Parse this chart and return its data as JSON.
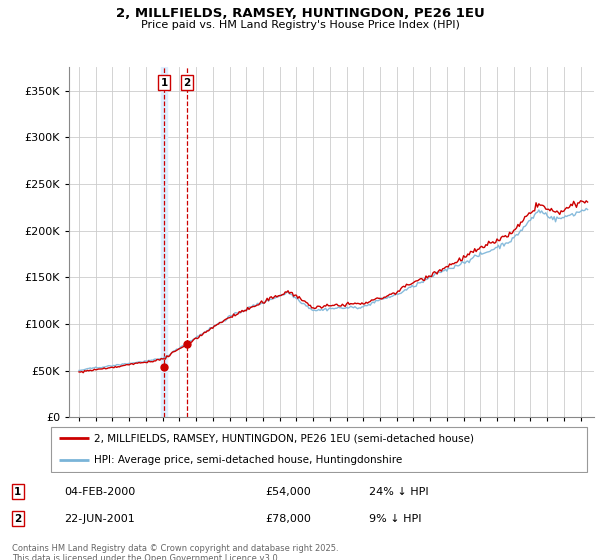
{
  "title": "2, MILLFIELDS, RAMSEY, HUNTINGDON, PE26 1EU",
  "subtitle": "Price paid vs. HM Land Registry's House Price Index (HPI)",
  "legend_line1": "2, MILLFIELDS, RAMSEY, HUNTINGDON, PE26 1EU (semi-detached house)",
  "legend_line2": "HPI: Average price, semi-detached house, Huntingdonshire",
  "sale1_date": "04-FEB-2000",
  "sale1_price": "£54,000",
  "sale1_note": "24% ↓ HPI",
  "sale1_year": 2000.09,
  "sale1_value": 54000,
  "sale2_date": "22-JUN-2001",
  "sale2_price": "£78,000",
  "sale2_note": "9% ↓ HPI",
  "sale2_year": 2001.47,
  "sale2_value": 78000,
  "footer": "Contains HM Land Registry data © Crown copyright and database right 2025.\nThis data is licensed under the Open Government Licence v3.0.",
  "hpi_color": "#7ab4d8",
  "property_color": "#cc0000",
  "vline_color": "#cc0000",
  "highlight_color": "#ddeeff",
  "ylim": [
    0,
    375000
  ],
  "yticks": [
    0,
    50000,
    100000,
    150000,
    200000,
    250000,
    300000,
    350000
  ],
  "background_color": "#ffffff",
  "grid_color": "#cccccc"
}
